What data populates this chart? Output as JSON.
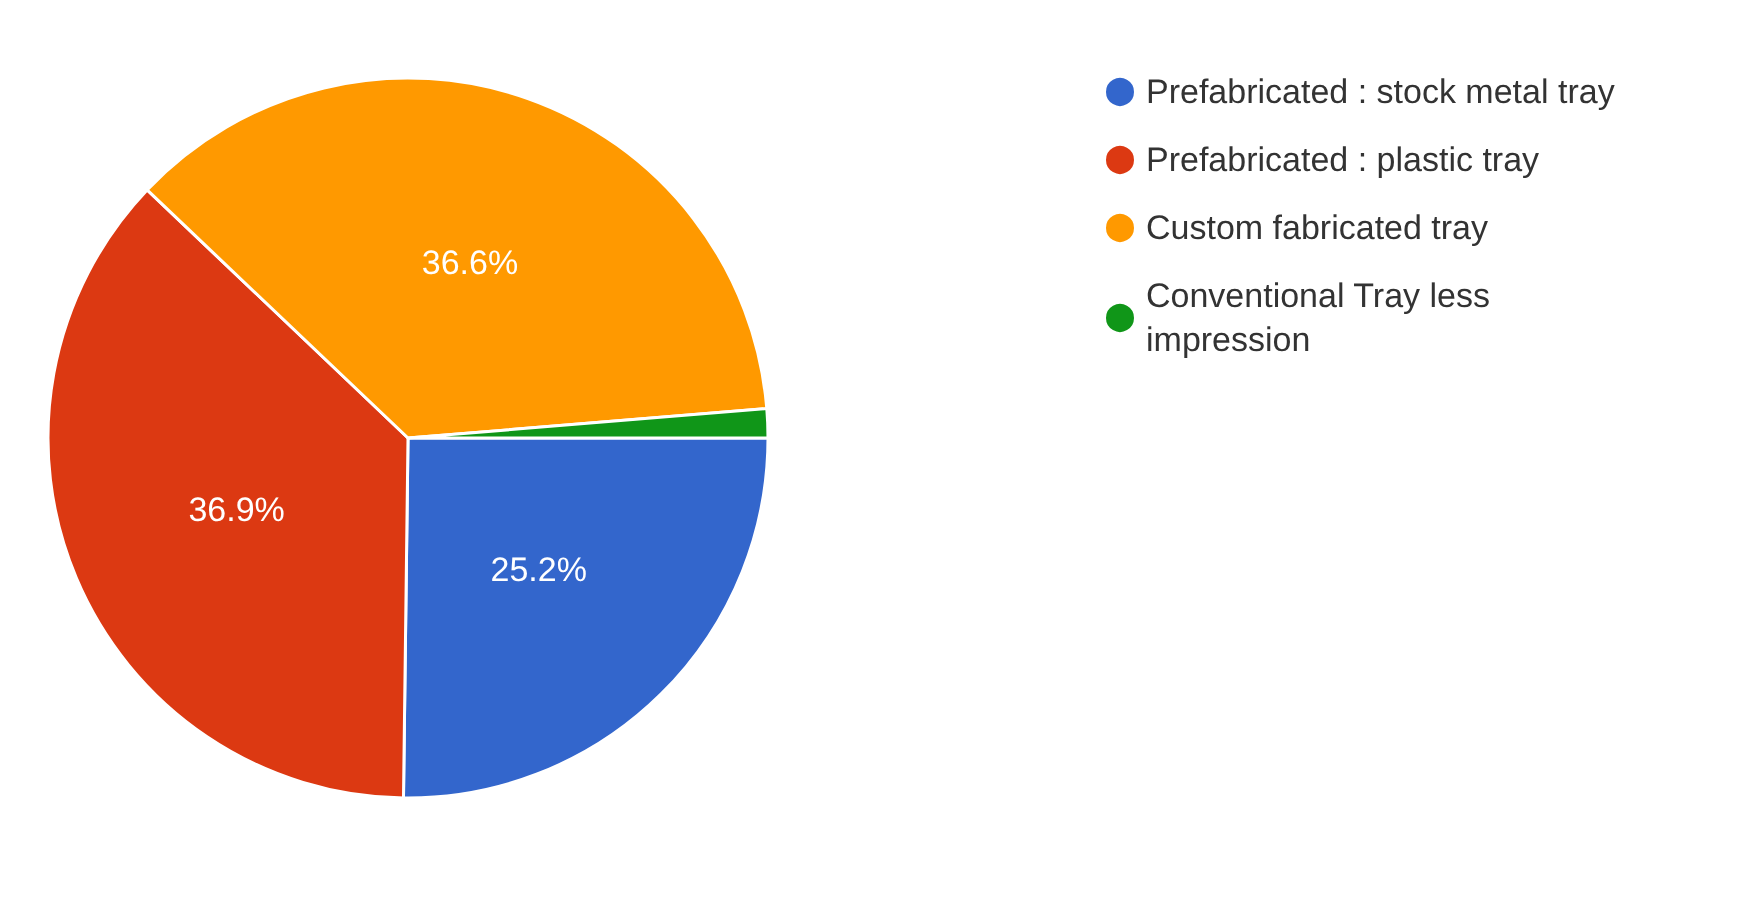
{
  "chart_data": {
    "type": "pie",
    "categories": [
      "Prefabricated : stock metal tray",
      "Prefabricated : plastic tray",
      "Custom fabricated tray",
      "Conventional Tray less impression"
    ],
    "values": [
      25.2,
      36.9,
      36.6,
      1.3
    ],
    "colors": [
      "#3366cc",
      "#dc3912",
      "#ff9900",
      "#109618"
    ],
    "value_labels": [
      "25.2%",
      "36.9%",
      "36.6%",
      null
    ],
    "legend": "top right"
  }
}
